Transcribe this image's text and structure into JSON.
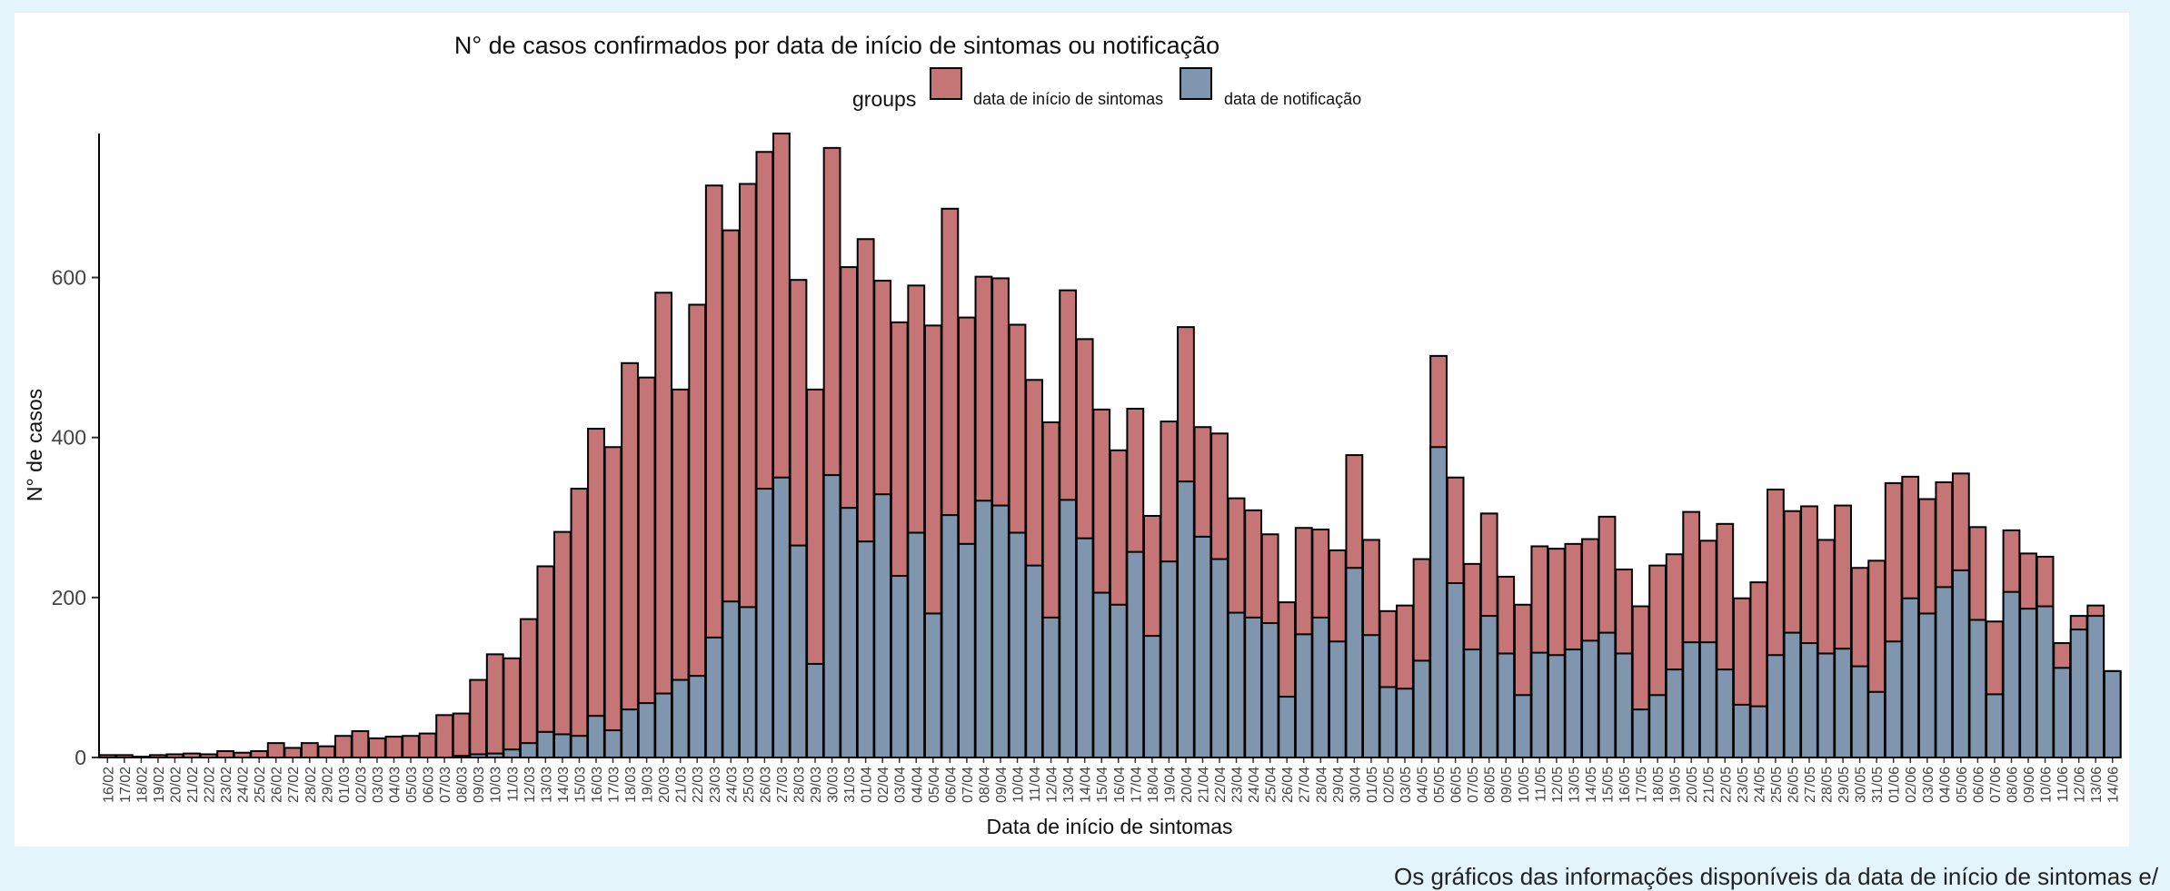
{
  "caption": "Os gráficos das informações disponíveis da data de início de sintomas e/",
  "colors": {
    "sintomas": "#c57575",
    "notificacao": "#7f96ae",
    "outline": "#000000"
  },
  "chart_data": {
    "type": "bar",
    "stacked": "overlay",
    "title": "N° de casos confirmados por data de início de sintomas ou notificação",
    "xlabel": "Data de início de sintomas",
    "ylabel": "N° de casos",
    "ylim": [
      0,
      780
    ],
    "yticks": [
      0,
      200,
      400,
      600
    ],
    "legend": {
      "title": "groups",
      "placement": "top-center"
    },
    "categories": [
      "16/02",
      "17/02",
      "18/02",
      "19/02",
      "20/02",
      "21/02",
      "22/02",
      "23/02",
      "24/02",
      "25/02",
      "26/02",
      "27/02",
      "28/02",
      "29/02",
      "01/03",
      "02/03",
      "03/03",
      "04/03",
      "05/03",
      "06/03",
      "07/03",
      "08/03",
      "09/03",
      "10/03",
      "11/03",
      "12/03",
      "13/03",
      "14/03",
      "15/03",
      "16/03",
      "17/03",
      "18/03",
      "19/03",
      "20/03",
      "21/03",
      "22/03",
      "23/03",
      "24/03",
      "25/03",
      "26/03",
      "27/03",
      "28/03",
      "29/03",
      "30/03",
      "31/03",
      "01/04",
      "02/04",
      "03/04",
      "04/04",
      "05/04",
      "06/04",
      "07/04",
      "08/04",
      "09/04",
      "10/04",
      "11/04",
      "12/04",
      "13/04",
      "14/04",
      "15/04",
      "16/04",
      "17/04",
      "18/04",
      "19/04",
      "20/04",
      "21/04",
      "22/04",
      "23/04",
      "24/04",
      "25/04",
      "26/04",
      "27/04",
      "28/04",
      "29/04",
      "30/04",
      "01/05",
      "02/05",
      "03/05",
      "04/05",
      "05/05",
      "06/05",
      "07/05",
      "08/05",
      "09/05",
      "10/05",
      "11/05",
      "12/05",
      "13/05",
      "14/05",
      "15/05",
      "16/05",
      "17/05",
      "18/05",
      "19/05",
      "20/05",
      "21/05",
      "22/05",
      "23/05",
      "24/05",
      "25/05",
      "26/05",
      "27/05",
      "28/05",
      "29/05",
      "30/05",
      "31/05",
      "01/06",
      "02/06",
      "03/06",
      "04/06",
      "05/06",
      "06/06",
      "07/06",
      "08/06",
      "09/06",
      "10/06",
      "11/06",
      "12/06",
      "13/06",
      "14/06"
    ],
    "series": [
      {
        "name": "data de início de sintomas",
        "values": [
          3,
          3,
          1,
          3,
          4,
          5,
          4,
          8,
          6,
          8,
          18,
          12,
          18,
          14,
          27,
          33,
          24,
          26,
          27,
          30,
          53,
          55,
          97,
          129,
          124,
          173,
          239,
          282,
          336,
          411,
          388,
          493,
          475,
          581,
          460,
          566,
          715,
          659,
          717,
          757,
          780,
          597,
          460,
          762,
          613,
          648,
          596,
          544,
          590,
          540,
          686,
          550,
          601,
          599,
          541,
          472,
          419,
          584,
          523,
          435,
          384,
          436,
          302,
          420,
          538,
          413,
          405,
          324,
          309,
          279,
          194,
          287,
          285,
          259,
          378,
          272,
          183,
          190,
          248,
          502,
          350,
          242,
          305,
          226,
          191,
          264,
          261,
          267,
          273,
          301,
          235,
          189,
          240,
          254,
          307,
          271,
          292,
          199,
          219,
          335,
          308,
          314,
          272,
          315,
          237,
          246,
          343,
          351,
          323,
          344,
          355,
          288,
          170,
          284,
          255,
          251,
          143,
          177,
          190,
          108
        ]
      },
      {
        "name": "data de notificação",
        "values": [
          0,
          0,
          0,
          0,
          0,
          0,
          0,
          0,
          0,
          0,
          0,
          0,
          0,
          0,
          0,
          0,
          0,
          0,
          0,
          0,
          0,
          2,
          4,
          5,
          10,
          18,
          32,
          29,
          27,
          52,
          34,
          60,
          68,
          80,
          97,
          102,
          150,
          195,
          188,
          336,
          350,
          265,
          117,
          353,
          312,
          270,
          329,
          227,
          281,
          180,
          303,
          267,
          321,
          315,
          281,
          240,
          175,
          322,
          274,
          206,
          191,
          257,
          152,
          245,
          345,
          276,
          248,
          181,
          175,
          168,
          76,
          154,
          175,
          145,
          237,
          153,
          88,
          86,
          121,
          388,
          218,
          135,
          177,
          130,
          78,
          131,
          128,
          135,
          146,
          156,
          130,
          60,
          78,
          110,
          144,
          144,
          110,
          66,
          64,
          128,
          156,
          143,
          130,
          136,
          114,
          82,
          145,
          199,
          180,
          213,
          234,
          172,
          79,
          207,
          186,
          189,
          112,
          160,
          177,
          108
        ]
      }
    ]
  }
}
